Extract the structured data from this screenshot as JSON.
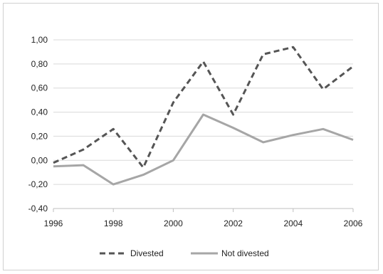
{
  "chart_data": {
    "type": "line",
    "title": "",
    "xlabel": "",
    "ylabel": "",
    "x": [
      1996,
      1997,
      1998,
      1999,
      2000,
      2001,
      2002,
      2003,
      2004,
      2005,
      2006
    ],
    "xlim": [
      1996,
      2006
    ],
    "ylim": [
      -0.4,
      1.0
    ],
    "yticks": [
      -0.4,
      -0.2,
      0.0,
      0.2,
      0.4,
      0.6,
      0.8,
      1.0
    ],
    "ytick_labels": [
      "-0,40",
      "-0,20",
      "0,00",
      "0,20",
      "0,40",
      "0,60",
      "0,80",
      "1,00"
    ],
    "xticks": [
      1996,
      1998,
      2000,
      2002,
      2004,
      2006
    ],
    "xtick_labels": [
      "1996",
      "1998",
      "2000",
      "2002",
      "2004",
      "2006"
    ],
    "grid": "horizontal",
    "legend_position": "bottom",
    "series": [
      {
        "name": "Divested",
        "style": "dashed",
        "color": "#555555",
        "values": [
          -0.02,
          0.09,
          0.26,
          -0.06,
          0.48,
          0.82,
          0.38,
          0.88,
          0.94,
          0.59,
          0.78
        ]
      },
      {
        "name": "Not divested",
        "style": "solid",
        "color": "#a6a6a6",
        "values": [
          -0.05,
          -0.04,
          -0.2,
          -0.12,
          0.0,
          0.38,
          0.27,
          0.15,
          0.21,
          0.26,
          0.17
        ]
      }
    ]
  }
}
